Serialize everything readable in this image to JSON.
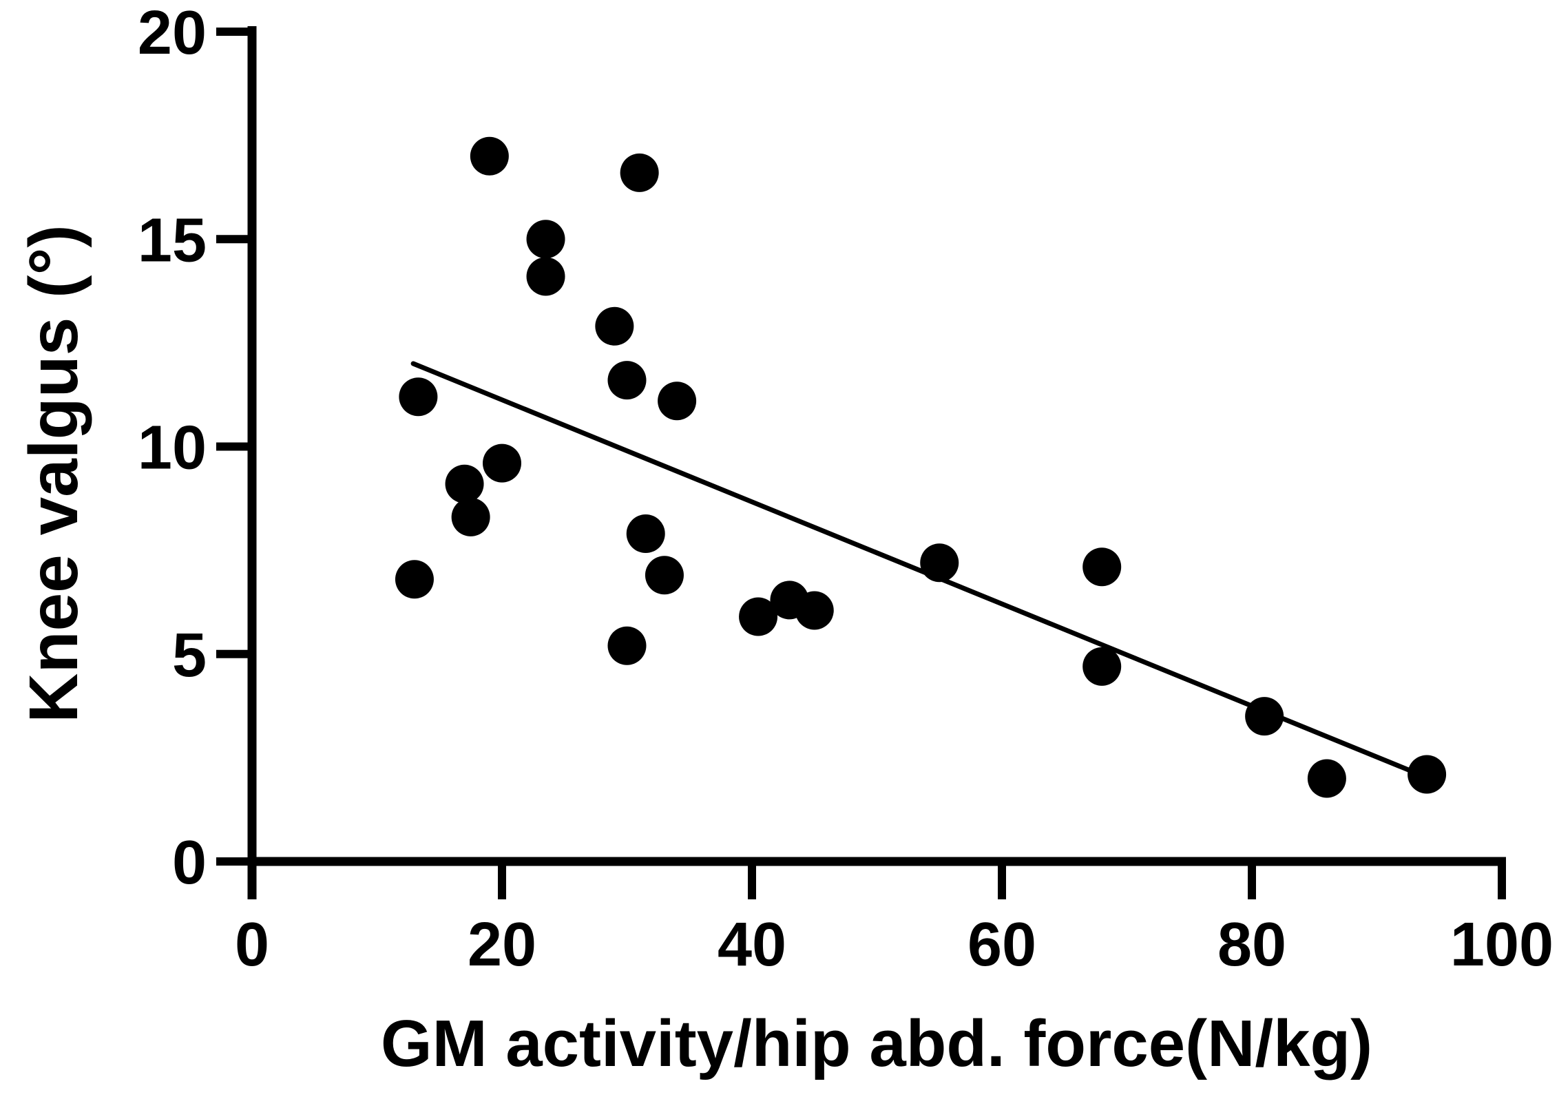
{
  "chart_data": {
    "type": "scatter",
    "title": "",
    "xlabel": "GM activity/hip abd. force(N/kg)",
    "ylabel": "Knee valgus (°)",
    "xlim": [
      0,
      100
    ],
    "ylim": [
      0,
      20
    ],
    "x_ticks": [
      0,
      20,
      40,
      60,
      80,
      100
    ],
    "y_ticks": [
      0,
      5,
      10,
      15,
      20
    ],
    "grid": false,
    "legend": false,
    "marker": {
      "shape": "circle",
      "color": "#000000"
    },
    "axis_color": "#000000",
    "background_color": "#ffffff",
    "points": [
      [
        13.3,
        11.2
      ],
      [
        19.0,
        17.0
      ],
      [
        23.5,
        15.0
      ],
      [
        23.5,
        14.1
      ],
      [
        29.0,
        12.9
      ],
      [
        31.0,
        16.6
      ],
      [
        30.0,
        11.6
      ],
      [
        34.0,
        11.1
      ],
      [
        20.0,
        9.6
      ],
      [
        17.0,
        9.1
      ],
      [
        17.5,
        8.3
      ],
      [
        13.0,
        6.8
      ],
      [
        31.5,
        7.9
      ],
      [
        33.0,
        6.9
      ],
      [
        30.0,
        5.2
      ],
      [
        40.5,
        5.9
      ],
      [
        43.0,
        6.3
      ],
      [
        45.0,
        6.05
      ],
      [
        55.0,
        7.2
      ],
      [
        68.0,
        7.1
      ],
      [
        68.0,
        4.7
      ],
      [
        81.0,
        3.5
      ],
      [
        86.0,
        2.0
      ],
      [
        94.0,
        2.1
      ]
    ],
    "trendline": {
      "x1": 12.9,
      "y1": 12.0,
      "x2": 93.0,
      "y2": 2.15
    }
  }
}
